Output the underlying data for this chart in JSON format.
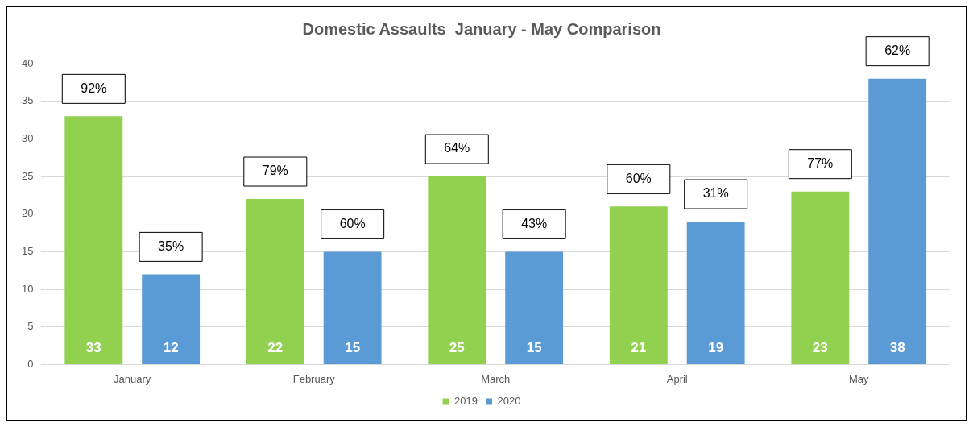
{
  "chart_data": {
    "type": "bar",
    "title": "Domestic Assaults  January - May Comparison",
    "categories": [
      "January",
      "February",
      "March",
      "April",
      "May"
    ],
    "series": [
      {
        "name": "2019",
        "color": "#92d050",
        "values": [
          33,
          22,
          25,
          21,
          23
        ]
      },
      {
        "name": "2020",
        "color": "#5b9bd5",
        "values": [
          12,
          15,
          15,
          19,
          38
        ]
      }
    ],
    "ylim": [
      0,
      40
    ],
    "yticks": [
      0,
      5,
      10,
      15,
      20,
      25,
      30,
      35,
      40
    ],
    "grid": "y",
    "legend": "bottom",
    "data_labels": true,
    "annotations": [
      "92%",
      "35%",
      "79%",
      "60%",
      "64%",
      "43%",
      "60%",
      "31%",
      "77%",
      "62%"
    ]
  }
}
